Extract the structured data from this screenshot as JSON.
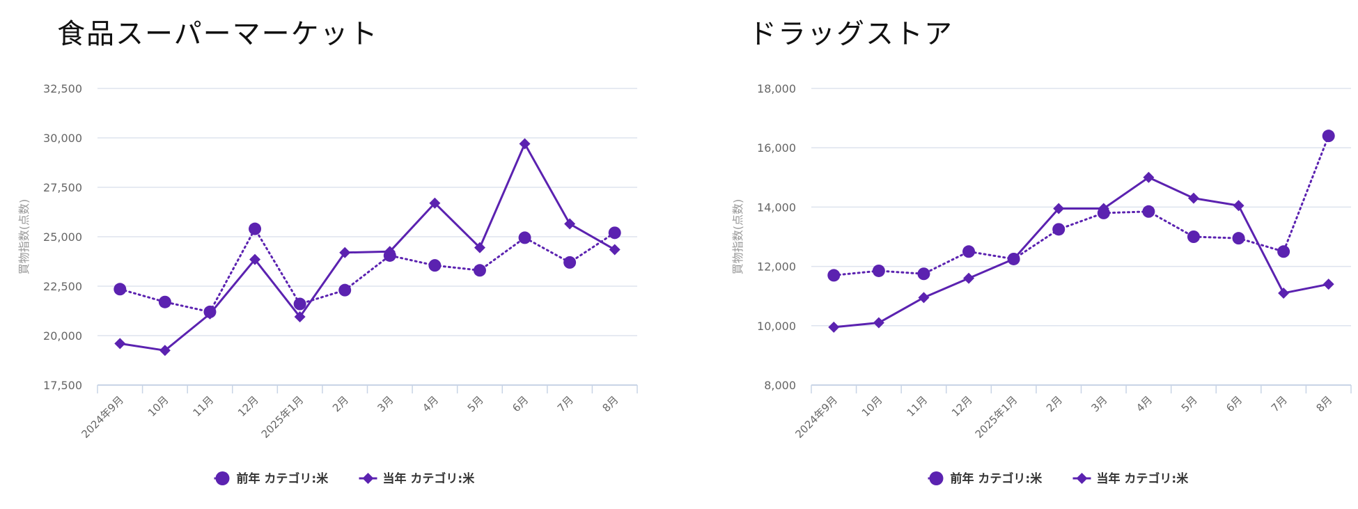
{
  "chart_data": [
    {
      "type": "line",
      "title": "食品スーパーマーケット",
      "ylabel": "買物指数(点数)",
      "xlabel": "",
      "categories": [
        "2024年9月",
        "10月",
        "11月",
        "12月",
        "2025年1月",
        "2月",
        "3月",
        "4月",
        "5月",
        "6月",
        "7月",
        "8月"
      ],
      "yticks": [
        "17,500",
        "20,000",
        "22,500",
        "25,000",
        "27,500",
        "30,000",
        "32,500"
      ],
      "ylim": [
        17500,
        32500
      ],
      "grid": true,
      "legend_position": "bottom",
      "series": [
        {
          "name": "前年 カテゴリ:米",
          "marker": "circle",
          "line": "dotted",
          "values": [
            22350,
            21700,
            21200,
            25400,
            21600,
            22300,
            24050,
            23550,
            23300,
            24950,
            23700,
            25200
          ]
        },
        {
          "name": "当年 カテゴリ:米",
          "marker": "diamond",
          "line": "solid",
          "values": [
            19600,
            19250,
            21100,
            23850,
            20950,
            24200,
            24250,
            26700,
            24450,
            29700,
            25650,
            24350
          ]
        }
      ]
    },
    {
      "type": "line",
      "title": "ドラッグストア",
      "ylabel": "買物指数(点数)",
      "xlabel": "",
      "categories": [
        "2024年9月",
        "10月",
        "11月",
        "12月",
        "2025年1月",
        "2月",
        "3月",
        "4月",
        "5月",
        "6月",
        "7月",
        "8月"
      ],
      "yticks": [
        "8,000",
        "10,000",
        "12,000",
        "14,000",
        "16,000",
        "18,000"
      ],
      "ylim": [
        8000,
        18000
      ],
      "grid": true,
      "legend_position": "bottom",
      "series": [
        {
          "name": "前年 カテゴリ:米",
          "marker": "circle",
          "line": "dotted",
          "values": [
            11700,
            11850,
            11750,
            12500,
            12250,
            13250,
            13800,
            13850,
            13000,
            12950,
            12500,
            16400
          ]
        },
        {
          "name": "当年 カテゴリ:米",
          "marker": "diamond",
          "line": "solid",
          "values": [
            9950,
            10100,
            10950,
            11600,
            12250,
            13950,
            13950,
            15000,
            14300,
            14050,
            11100,
            11400
          ]
        }
      ]
    }
  ],
  "colors": {
    "series": "#5b22b0",
    "grid": "#dde3ee",
    "axis": "#c8d4e6"
  }
}
